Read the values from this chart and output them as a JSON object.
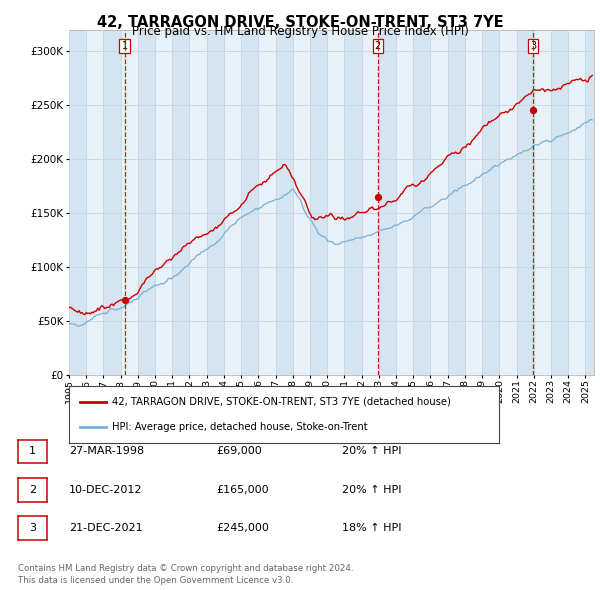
{
  "title": "42, TARRAGON DRIVE, STOKE-ON-TRENT, ST3 7YE",
  "subtitle": "Price paid vs. HM Land Registry's House Price Index (HPI)",
  "legend_line1": "42, TARRAGON DRIVE, STOKE-ON-TRENT, ST3 7YE (detached house)",
  "legend_line2": "HPI: Average price, detached house, Stoke-on-Trent",
  "sale_points": [
    {
      "date_year": 1998.23,
      "price": 69000,
      "label": "1"
    },
    {
      "date_year": 2012.94,
      "price": 165000,
      "label": "2"
    },
    {
      "date_year": 2021.97,
      "price": 245000,
      "label": "3"
    }
  ],
  "table_rows": [
    {
      "num": "1",
      "date": "27-MAR-1998",
      "price": "£69,000",
      "hpi": "20% ↑ HPI"
    },
    {
      "num": "2",
      "date": "10-DEC-2012",
      "price": "£165,000",
      "hpi": "20% ↑ HPI"
    },
    {
      "num": "3",
      "date": "21-DEC-2021",
      "price": "£245,000",
      "hpi": "18% ↑ HPI"
    }
  ],
  "footer": "Contains HM Land Registry data © Crown copyright and database right 2024.\nThis data is licensed under the Open Government Licence v3.0.",
  "vline_years": [
    1998.23,
    2012.94,
    2021.97
  ],
  "vline_labels": [
    "1",
    "2",
    "3"
  ],
  "ylim": [
    0,
    320000
  ],
  "xlim_start": 1995.0,
  "xlim_end": 2025.5,
  "red_color": "#cc0000",
  "blue_color": "#7ab0d4",
  "grid_color": "#c8d8e8",
  "plot_bg": "#e8f0f8",
  "stripe_color": "#d4e4f0",
  "vline_color": "#cc0000"
}
